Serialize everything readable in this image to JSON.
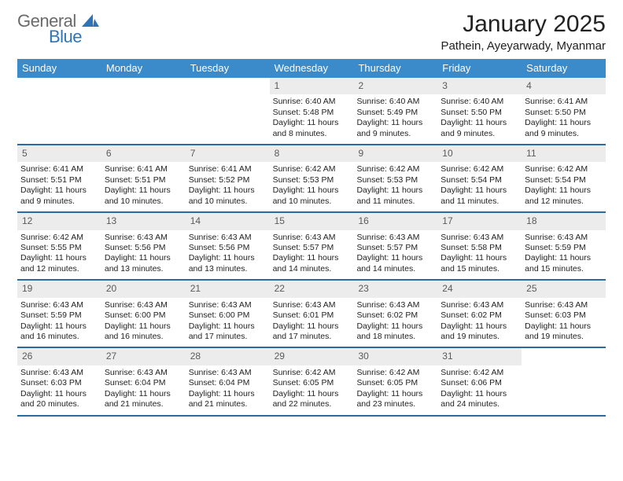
{
  "logo": {
    "general": "General",
    "blue": "Blue"
  },
  "title": "January 2025",
  "subtitle": "Pathein, Ayeyarwady, Myanmar",
  "colors": {
    "header_bg": "#3b8bca",
    "week_divider": "#2b6aa3",
    "daynum_bg": "#ececec",
    "text": "#212121",
    "logo_gray": "#6a6a6a",
    "logo_blue": "#2f74b5",
    "page_bg": "#ffffff"
  },
  "daysOfWeek": [
    "Sunday",
    "Monday",
    "Tuesday",
    "Wednesday",
    "Thursday",
    "Friday",
    "Saturday"
  ],
  "weeks": [
    [
      {
        "n": "",
        "sun": "",
        "set": "",
        "day": ""
      },
      {
        "n": "",
        "sun": "",
        "set": "",
        "day": ""
      },
      {
        "n": "",
        "sun": "",
        "set": "",
        "day": ""
      },
      {
        "n": "1",
        "sun": "Sunrise: 6:40 AM",
        "set": "Sunset: 5:48 PM",
        "day": "Daylight: 11 hours and 8 minutes."
      },
      {
        "n": "2",
        "sun": "Sunrise: 6:40 AM",
        "set": "Sunset: 5:49 PM",
        "day": "Daylight: 11 hours and 9 minutes."
      },
      {
        "n": "3",
        "sun": "Sunrise: 6:40 AM",
        "set": "Sunset: 5:50 PM",
        "day": "Daylight: 11 hours and 9 minutes."
      },
      {
        "n": "4",
        "sun": "Sunrise: 6:41 AM",
        "set": "Sunset: 5:50 PM",
        "day": "Daylight: 11 hours and 9 minutes."
      }
    ],
    [
      {
        "n": "5",
        "sun": "Sunrise: 6:41 AM",
        "set": "Sunset: 5:51 PM",
        "day": "Daylight: 11 hours and 9 minutes."
      },
      {
        "n": "6",
        "sun": "Sunrise: 6:41 AM",
        "set": "Sunset: 5:51 PM",
        "day": "Daylight: 11 hours and 10 minutes."
      },
      {
        "n": "7",
        "sun": "Sunrise: 6:41 AM",
        "set": "Sunset: 5:52 PM",
        "day": "Daylight: 11 hours and 10 minutes."
      },
      {
        "n": "8",
        "sun": "Sunrise: 6:42 AM",
        "set": "Sunset: 5:53 PM",
        "day": "Daylight: 11 hours and 10 minutes."
      },
      {
        "n": "9",
        "sun": "Sunrise: 6:42 AM",
        "set": "Sunset: 5:53 PM",
        "day": "Daylight: 11 hours and 11 minutes."
      },
      {
        "n": "10",
        "sun": "Sunrise: 6:42 AM",
        "set": "Sunset: 5:54 PM",
        "day": "Daylight: 11 hours and 11 minutes."
      },
      {
        "n": "11",
        "sun": "Sunrise: 6:42 AM",
        "set": "Sunset: 5:54 PM",
        "day": "Daylight: 11 hours and 12 minutes."
      }
    ],
    [
      {
        "n": "12",
        "sun": "Sunrise: 6:42 AM",
        "set": "Sunset: 5:55 PM",
        "day": "Daylight: 11 hours and 12 minutes."
      },
      {
        "n": "13",
        "sun": "Sunrise: 6:43 AM",
        "set": "Sunset: 5:56 PM",
        "day": "Daylight: 11 hours and 13 minutes."
      },
      {
        "n": "14",
        "sun": "Sunrise: 6:43 AM",
        "set": "Sunset: 5:56 PM",
        "day": "Daylight: 11 hours and 13 minutes."
      },
      {
        "n": "15",
        "sun": "Sunrise: 6:43 AM",
        "set": "Sunset: 5:57 PM",
        "day": "Daylight: 11 hours and 14 minutes."
      },
      {
        "n": "16",
        "sun": "Sunrise: 6:43 AM",
        "set": "Sunset: 5:57 PM",
        "day": "Daylight: 11 hours and 14 minutes."
      },
      {
        "n": "17",
        "sun": "Sunrise: 6:43 AM",
        "set": "Sunset: 5:58 PM",
        "day": "Daylight: 11 hours and 15 minutes."
      },
      {
        "n": "18",
        "sun": "Sunrise: 6:43 AM",
        "set": "Sunset: 5:59 PM",
        "day": "Daylight: 11 hours and 15 minutes."
      }
    ],
    [
      {
        "n": "19",
        "sun": "Sunrise: 6:43 AM",
        "set": "Sunset: 5:59 PM",
        "day": "Daylight: 11 hours and 16 minutes."
      },
      {
        "n": "20",
        "sun": "Sunrise: 6:43 AM",
        "set": "Sunset: 6:00 PM",
        "day": "Daylight: 11 hours and 16 minutes."
      },
      {
        "n": "21",
        "sun": "Sunrise: 6:43 AM",
        "set": "Sunset: 6:00 PM",
        "day": "Daylight: 11 hours and 17 minutes."
      },
      {
        "n": "22",
        "sun": "Sunrise: 6:43 AM",
        "set": "Sunset: 6:01 PM",
        "day": "Daylight: 11 hours and 17 minutes."
      },
      {
        "n": "23",
        "sun": "Sunrise: 6:43 AM",
        "set": "Sunset: 6:02 PM",
        "day": "Daylight: 11 hours and 18 minutes."
      },
      {
        "n": "24",
        "sun": "Sunrise: 6:43 AM",
        "set": "Sunset: 6:02 PM",
        "day": "Daylight: 11 hours and 19 minutes."
      },
      {
        "n": "25",
        "sun": "Sunrise: 6:43 AM",
        "set": "Sunset: 6:03 PM",
        "day": "Daylight: 11 hours and 19 minutes."
      }
    ],
    [
      {
        "n": "26",
        "sun": "Sunrise: 6:43 AM",
        "set": "Sunset: 6:03 PM",
        "day": "Daylight: 11 hours and 20 minutes."
      },
      {
        "n": "27",
        "sun": "Sunrise: 6:43 AM",
        "set": "Sunset: 6:04 PM",
        "day": "Daylight: 11 hours and 21 minutes."
      },
      {
        "n": "28",
        "sun": "Sunrise: 6:43 AM",
        "set": "Sunset: 6:04 PM",
        "day": "Daylight: 11 hours and 21 minutes."
      },
      {
        "n": "29",
        "sun": "Sunrise: 6:42 AM",
        "set": "Sunset: 6:05 PM",
        "day": "Daylight: 11 hours and 22 minutes."
      },
      {
        "n": "30",
        "sun": "Sunrise: 6:42 AM",
        "set": "Sunset: 6:05 PM",
        "day": "Daylight: 11 hours and 23 minutes."
      },
      {
        "n": "31",
        "sun": "Sunrise: 6:42 AM",
        "set": "Sunset: 6:06 PM",
        "day": "Daylight: 11 hours and 24 minutes."
      },
      {
        "n": "",
        "sun": "",
        "set": "",
        "day": ""
      }
    ]
  ]
}
